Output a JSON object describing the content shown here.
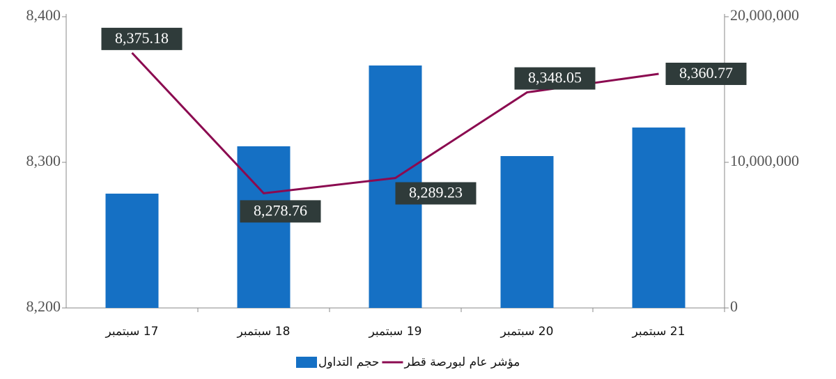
{
  "chart_data": {
    "type": "bar",
    "categories": [
      "17 سبتمبر",
      "18 سبتمبر",
      "19 سبتمبر",
      "20 سبتمبر",
      "21 سبتمبر"
    ],
    "series": [
      {
        "name": "حجم التداول",
        "type": "bar",
        "axis": "y2",
        "color": "#1570c4",
        "values": [
          7850000,
          11100000,
          16650000,
          10430000,
          12390000
        ]
      },
      {
        "name": "مؤشر عام لبورصة قطر",
        "type": "line",
        "color": "#8b0a50",
        "values": [
          8375.18,
          8278.76,
          8289.23,
          8348.05,
          8360.77
        ],
        "value_labels": [
          "8,375.18",
          "8,278.76",
          "8,289.23",
          "8,348.05",
          "8,360.77"
        ]
      }
    ],
    "ylim": [
      8200,
      8400
    ],
    "yticks": [
      {
        "value": 8200,
        "label": "8,200"
      },
      {
        "value": 8300,
        "label": "8,300"
      },
      {
        "value": 8400,
        "label": "8,400"
      }
    ],
    "y2lim": [
      0,
      20000000
    ],
    "y2ticks": [
      0,
      {
        "value": 10000000,
        "label": "10,000,000"
      },
      {
        "value": 20000000,
        "label": "20,000,000"
      }
    ],
    "legend": "bottom"
  }
}
